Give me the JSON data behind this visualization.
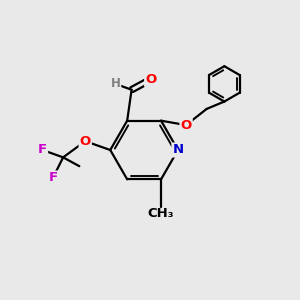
{
  "bg_color": "#e9e9e9",
  "bond_color": "#000000",
  "bond_width": 1.6,
  "atom_colors": {
    "O": "#ff0000",
    "N": "#0000cc",
    "F": "#cc00cc",
    "C": "#000000",
    "H": "#808080"
  },
  "font_size": 9.5
}
